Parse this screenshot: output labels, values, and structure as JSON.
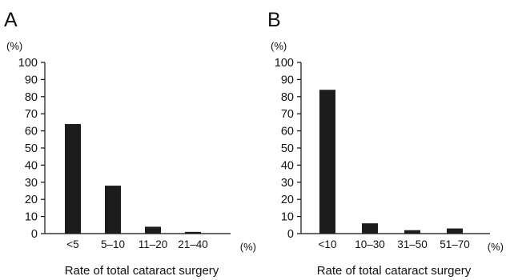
{
  "chart_data": [
    {
      "type": "bar",
      "panel": "A",
      "y_unit": "(%)",
      "x_unit": "(%)",
      "xlabel": "Rate of total cataract surgery",
      "ylabel": "",
      "ylim": [
        0,
        100
      ],
      "yticks": [
        0,
        10,
        20,
        30,
        40,
        50,
        60,
        70,
        80,
        90,
        100
      ],
      "categories": [
        "<5",
        "5–10",
        "11–20",
        "21–40"
      ],
      "values": [
        64,
        28,
        4,
        1
      ]
    },
    {
      "type": "bar",
      "panel": "B",
      "y_unit": "(%)",
      "x_unit": "(%)",
      "xlabel": "Rate of total cataract surgery",
      "ylabel": "",
      "ylim": [
        0,
        100
      ],
      "yticks": [
        0,
        10,
        20,
        30,
        40,
        50,
        60,
        70,
        80,
        90,
        100
      ],
      "categories": [
        "<10",
        "10–30",
        "31–50",
        "51–70"
      ],
      "values": [
        84,
        6,
        2,
        3
      ]
    }
  ]
}
